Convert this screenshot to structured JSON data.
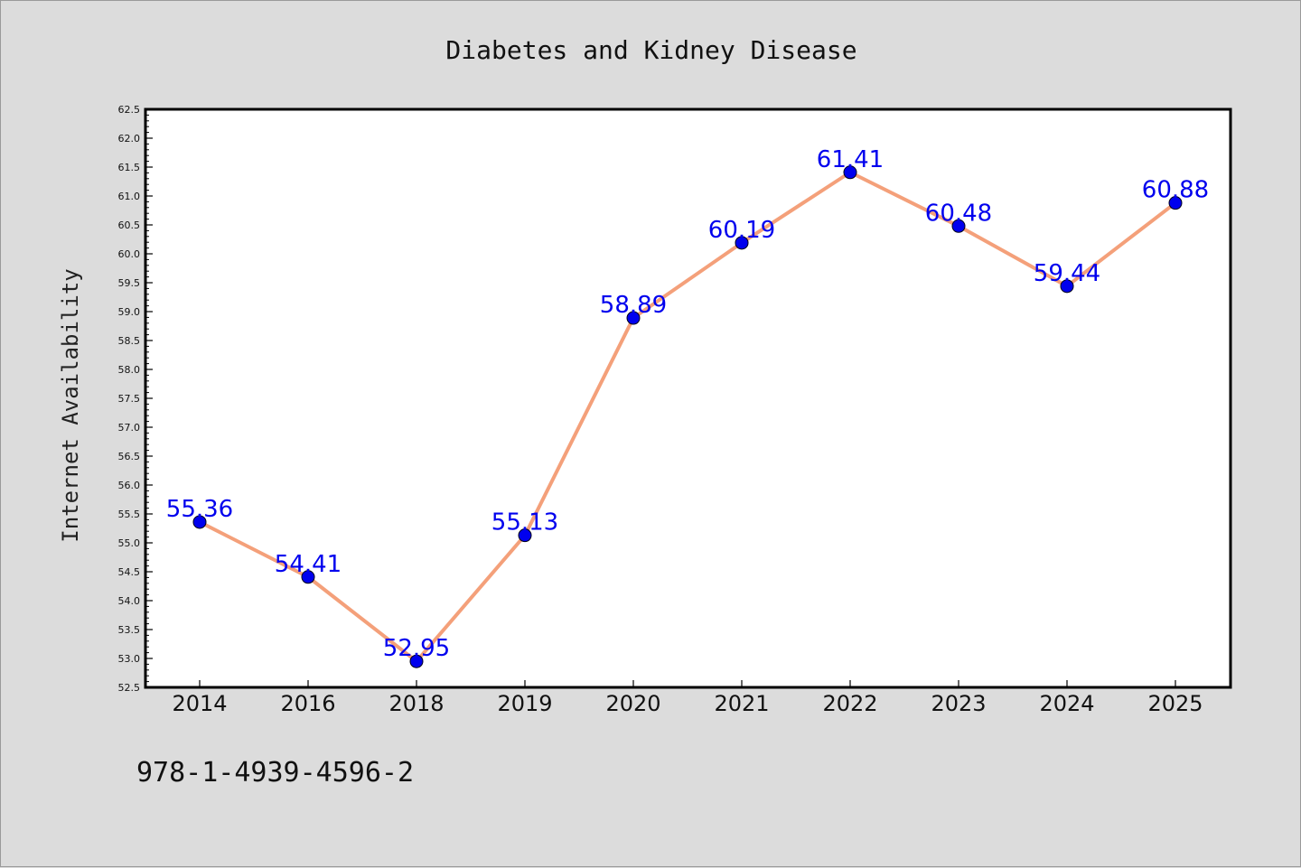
{
  "chart_data": {
    "type": "line",
    "title": "Diabetes and Kidney Disease",
    "xlabel": "",
    "ylabel": "Internet Availability",
    "categories": [
      "2014",
      "2016",
      "2018",
      "2019",
      "2020",
      "2021",
      "2022",
      "2023",
      "2024",
      "2025"
    ],
    "series": [
      {
        "values": [
          55.36,
          54.41,
          52.95,
          55.13,
          58.89,
          60.19,
          61.41,
          60.48,
          59.44,
          60.88
        ],
        "labels": [
          "55.36",
          "54.41",
          "52.95",
          "55.13",
          "58.89",
          "60.19",
          "61.41",
          "60.48",
          "59.44",
          "60.88"
        ],
        "line_color": "#f4a07a",
        "marker_color": "#0000ee"
      }
    ],
    "ylim": [
      52.5,
      62.5
    ],
    "ytick_step": 0.5,
    "grid": false,
    "legend": "none",
    "annotation": "978-1-4939-4596-2"
  }
}
